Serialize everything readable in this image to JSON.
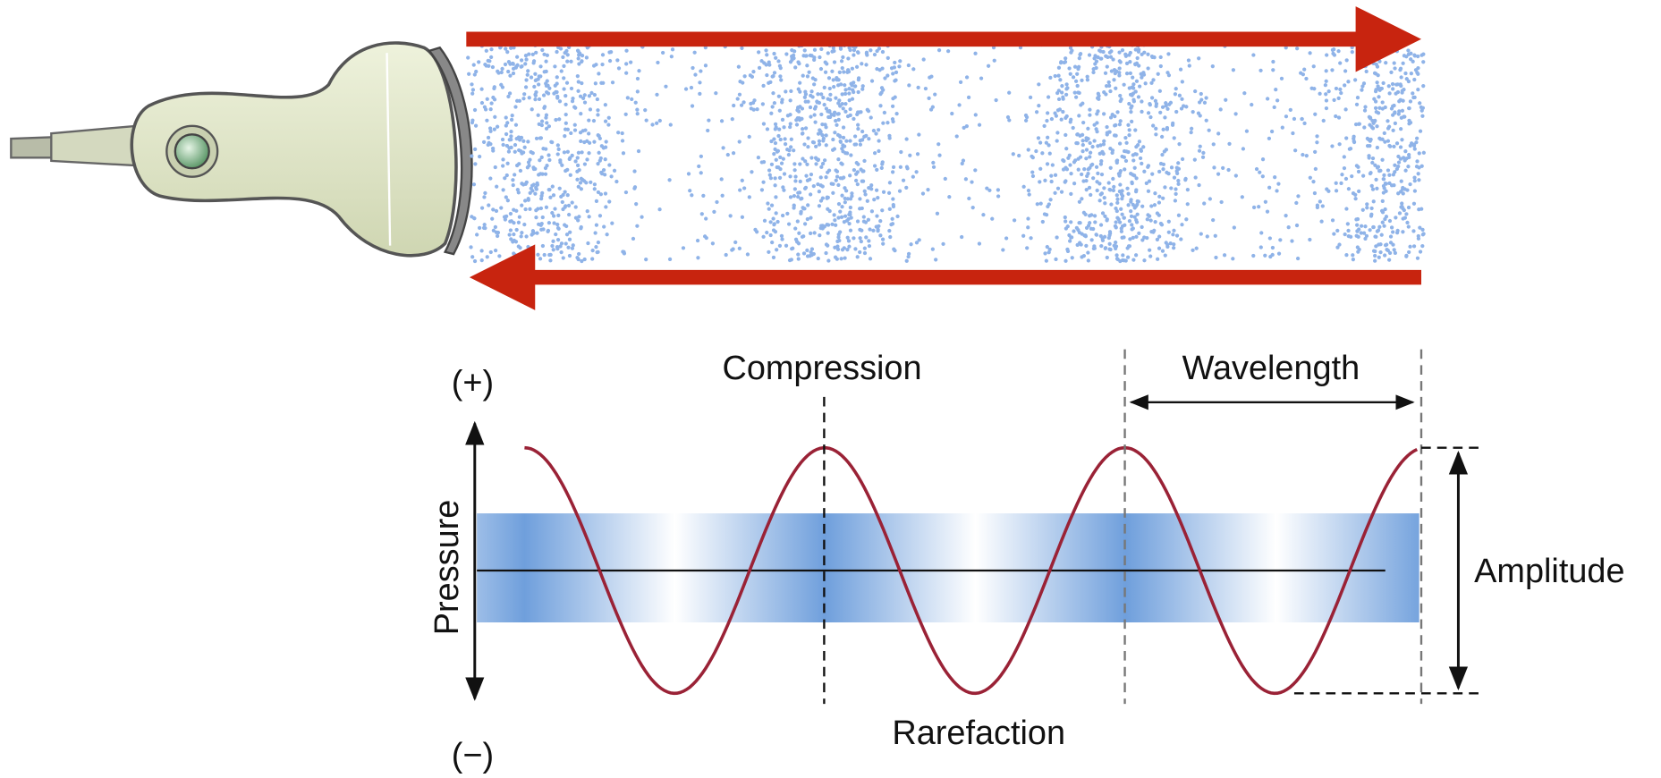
{
  "labels": {
    "plus": "(+)",
    "minus": "(−)",
    "pressure": "Pressure",
    "compression": "Compression",
    "wavelength": "Wavelength",
    "amplitude": "Amplitude",
    "rarefaction": "Rarefaction"
  }
}
